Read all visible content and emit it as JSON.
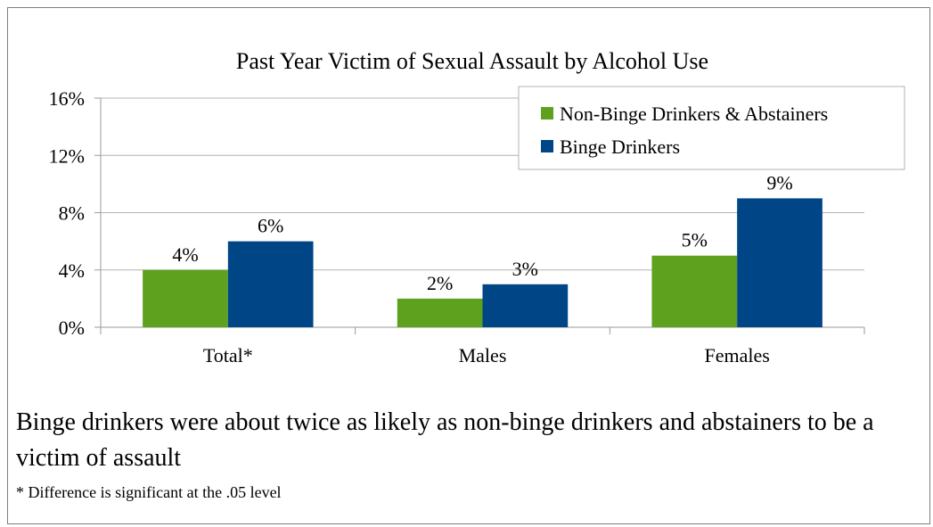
{
  "chart_data": {
    "type": "bar",
    "title": "Past Year Victim of Sexual Assault by Alcohol Use",
    "categories": [
      "Total*",
      "Males",
      "Females"
    ],
    "series": [
      {
        "name": "Non-Binge Drinkers & Abstainers",
        "values": [
          4,
          2,
          5
        ],
        "labels": [
          "4%",
          "2%",
          "5%"
        ],
        "color": "#5ea11f"
      },
      {
        "name": "Binge Drinkers",
        "values": [
          6,
          3,
          9
        ],
        "labels": [
          "6%",
          "3%",
          "9%"
        ],
        "color": "#004586"
      }
    ],
    "ylim": [
      0,
      16
    ],
    "yticks": [
      0,
      4,
      8,
      12,
      16
    ],
    "ytick_labels": [
      "0%",
      "4%",
      "8%",
      "12%",
      "16%"
    ],
    "xlabel": "",
    "ylabel": "",
    "grid": true,
    "legend": "top-right"
  },
  "notes": {
    "main": "Binge drinkers were about twice as likely as non-binge drinkers and abstainers to be a victim of assault",
    "footnote": "* Difference is significant at the .05 level"
  }
}
